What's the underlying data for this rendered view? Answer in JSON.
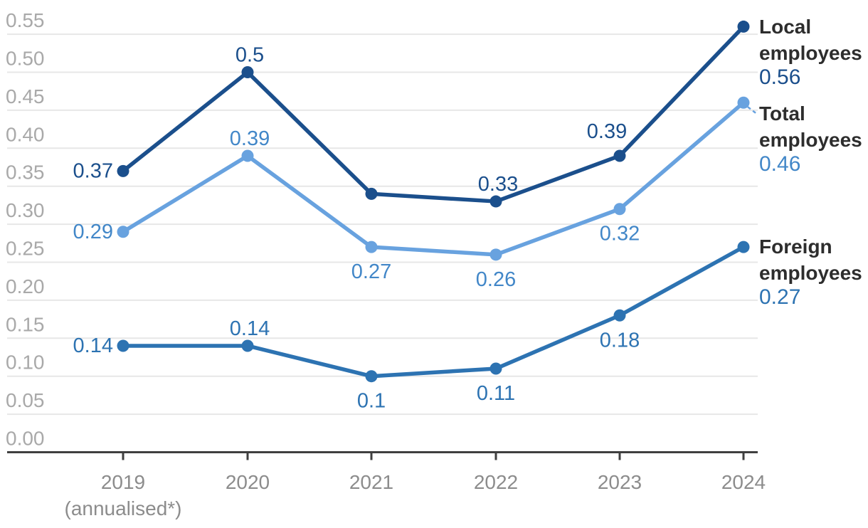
{
  "chart_data": {
    "type": "line",
    "title": "",
    "xlabel": "",
    "ylabel": "",
    "x": [
      "2019",
      "2020",
      "2021",
      "2022",
      "2023",
      "2024"
    ],
    "x_sub_label": {
      "index": 0,
      "text": "(annualised*)"
    },
    "y_ticks": [
      "0.55",
      "0.50",
      "0.45",
      "0.40",
      "0.35",
      "0.30",
      "0.25",
      "0.20",
      "0.15",
      "0.10",
      "0.05",
      "0.00"
    ],
    "ylim": [
      0,
      0.55
    ],
    "grid": "horizontal",
    "legend_position": "right",
    "series": [
      {
        "name": "Local employees",
        "color": "#1b4f8c",
        "label_color": "#1b4f8c",
        "values": [
          0.37,
          0.5,
          0.34,
          0.33,
          0.39,
          0.56
        ],
        "point_labels": [
          "0.37",
          "0.5",
          null,
          "0.33",
          "0.39",
          null
        ],
        "label_placements": [
          "left",
          "above",
          null,
          "above",
          "above-left",
          null
        ],
        "legend": {
          "lines": [
            "Local",
            "employees"
          ],
          "value": "0.56"
        },
        "legend_connector_dashed": false
      },
      {
        "name": "Total employees",
        "color": "#68a2df",
        "label_color": "#4287c8",
        "values": [
          0.29,
          0.39,
          0.27,
          0.26,
          0.32,
          0.46
        ],
        "point_labels": [
          "0.29",
          "0.39",
          "0.27",
          "0.26",
          "0.32",
          null
        ],
        "label_placements": [
          "left",
          "above",
          "below",
          "below",
          "below",
          null
        ],
        "legend": {
          "lines": [
            "Total",
            "employees"
          ],
          "value": "0.46"
        },
        "legend_connector_dashed": true
      },
      {
        "name": "Foreign employees",
        "color": "#2d73b2",
        "label_color": "#2d73b2",
        "values": [
          0.14,
          0.14,
          0.1,
          0.11,
          0.18,
          0.27
        ],
        "point_labels": [
          "0.14",
          "0.14",
          "0.1",
          "0.11",
          "0.18",
          null
        ],
        "label_placements": [
          "left",
          "above",
          "below",
          "below",
          "below",
          null
        ],
        "legend": {
          "lines": [
            "Foreign",
            "employees"
          ],
          "value": "0.27"
        },
        "legend_connector_dashed": false
      }
    ],
    "colors": {
      "background": "#ffffff",
      "gridline": "#e7e7e7",
      "axis_line": "#3f3f3f",
      "y_tick_text": "#a9a9a9",
      "x_tick_text": "#8c8c8c",
      "legend_text": "#2d2d2d"
    }
  }
}
